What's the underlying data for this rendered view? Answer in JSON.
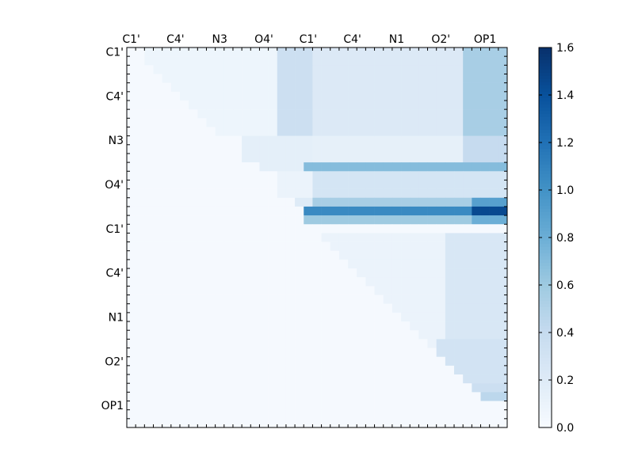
{
  "chart_data": {
    "type": "heatmap",
    "title": "",
    "xlabel": "",
    "ylabel": "",
    "n": 43,
    "x_tick_labels": [
      "C1'",
      "C4'",
      "N3",
      "O4'",
      "C1'",
      "C4'",
      "N1",
      "O2'",
      "OP1"
    ],
    "x_tick_indices": [
      0,
      5,
      10,
      15,
      20,
      25,
      30,
      35,
      40
    ],
    "y_tick_labels": [
      "C1'",
      "C4'",
      "N3",
      "O4'",
      "C1'",
      "C4'",
      "N1",
      "O2'",
      "OP1"
    ],
    "y_tick_indices": [
      0,
      5,
      10,
      15,
      20,
      25,
      30,
      35,
      40
    ],
    "colormap": [
      "#f7fbff",
      "#deebf7",
      "#c6dbef",
      "#9ecae1",
      "#6baed6",
      "#4292c6",
      "#2171b5",
      "#08519c",
      "#08306b"
    ],
    "colorbar": {
      "range": [
        0.0,
        1.6
      ],
      "tick_labels": [
        "0.0",
        "0.2",
        "0.4",
        "0.6",
        "0.8",
        "1.0",
        "1.2",
        "1.4",
        "1.6"
      ],
      "tick_values": [
        0.0,
        0.2,
        0.4,
        0.6,
        0.8,
        1.0,
        1.2,
        1.4,
        1.6
      ]
    },
    "base_value": 0.02,
    "region_values": [
      {
        "rows": [
          0,
          10
        ],
        "cols": [
          2,
          17
        ],
        "value": 0.08
      },
      {
        "rows": [
          0,
          10
        ],
        "cols": [
          17,
          21
        ],
        "value": 0.35
      },
      {
        "rows": [
          0,
          10
        ],
        "cols": [
          21,
          38
        ],
        "value": 0.22
      },
      {
        "rows": [
          0,
          10
        ],
        "cols": [
          38,
          43
        ],
        "value": 0.55
      },
      {
        "rows": [
          10,
          13
        ],
        "cols": [
          13,
          21
        ],
        "value": 0.15
      },
      {
        "rows": [
          10,
          13
        ],
        "cols": [
          21,
          38
        ],
        "value": 0.14
      },
      {
        "rows": [
          10,
          13
        ],
        "cols": [
          38,
          43
        ],
        "value": 0.4
      },
      {
        "rows": [
          13,
          14
        ],
        "cols": [
          15,
          20
        ],
        "value": 0.15
      },
      {
        "rows": [
          13,
          14
        ],
        "cols": [
          20,
          43
        ],
        "value": 0.7
      },
      {
        "rows": [
          14,
          17
        ],
        "cols": [
          17,
          21
        ],
        "value": 0.1
      },
      {
        "rows": [
          14,
          17
        ],
        "cols": [
          21,
          43
        ],
        "value": 0.28
      },
      {
        "rows": [
          17,
          18
        ],
        "cols": [
          19,
          21
        ],
        "value": 0.2
      },
      {
        "rows": [
          17,
          18
        ],
        "cols": [
          21,
          39
        ],
        "value": 0.55
      },
      {
        "rows": [
          17,
          18
        ],
        "cols": [
          39,
          43
        ],
        "value": 0.9
      },
      {
        "rows": [
          18,
          19
        ],
        "cols": [
          20,
          39
        ],
        "value": 1.05
      },
      {
        "rows": [
          18,
          19
        ],
        "cols": [
          39,
          43
        ],
        "value": 1.45
      },
      {
        "rows": [
          19,
          20
        ],
        "cols": [
          20,
          39
        ],
        "value": 0.6
      },
      {
        "rows": [
          19,
          20
        ],
        "cols": [
          39,
          43
        ],
        "value": 0.8
      },
      {
        "rows": [
          21,
          35
        ],
        "cols": [
          22,
          36
        ],
        "value": 0.1
      },
      {
        "rows": [
          21,
          35
        ],
        "cols": [
          36,
          43
        ],
        "value": 0.25
      },
      {
        "rows": [
          33,
          38
        ],
        "cols": [
          35,
          43
        ],
        "value": 0.3
      },
      {
        "rows": [
          38,
          40
        ],
        "cols": [
          38,
          43
        ],
        "value": 0.35
      },
      {
        "rows": [
          39,
          40
        ],
        "cols": [
          40,
          43
        ],
        "value": 0.45
      }
    ]
  }
}
